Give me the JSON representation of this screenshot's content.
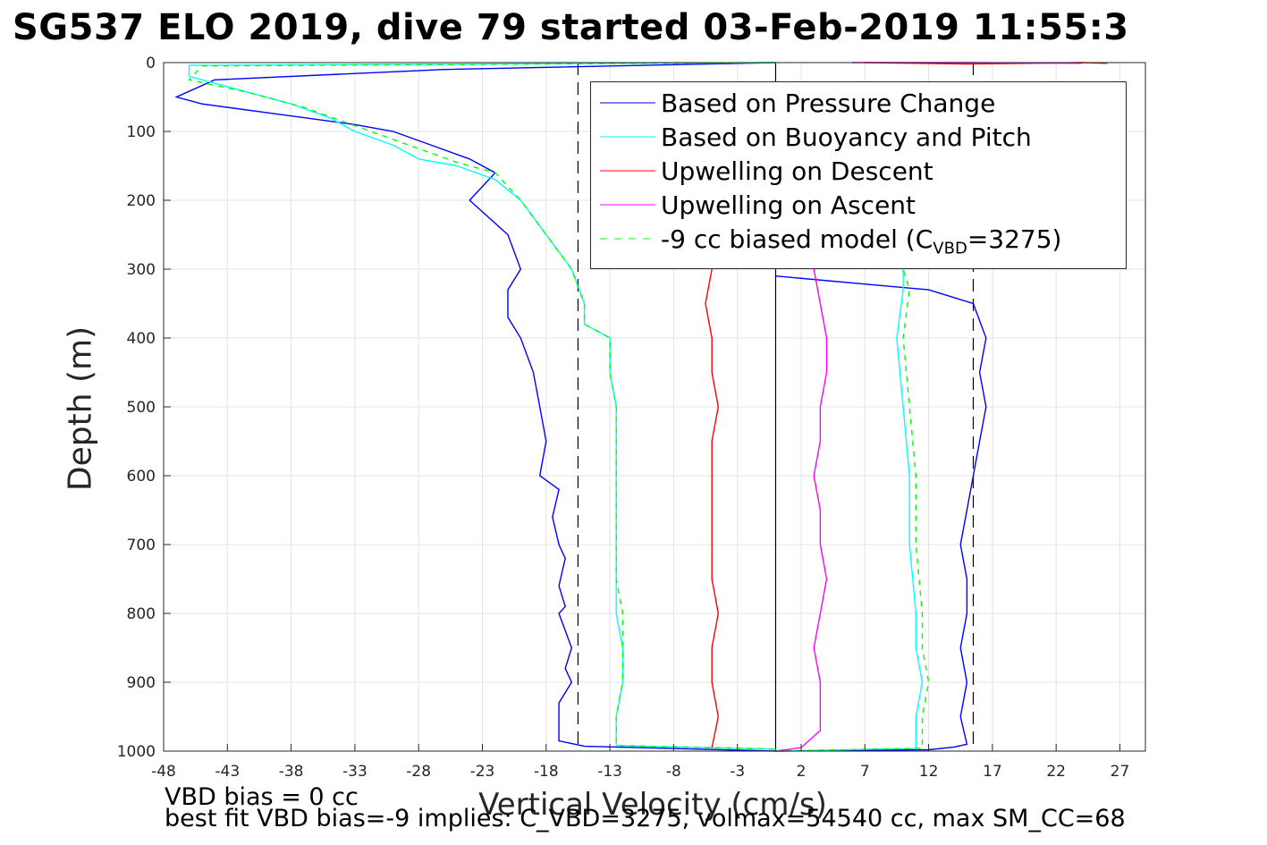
{
  "chart_data": {
    "type": "line",
    "title": "SG537 ELO 2019, dive 79 started 03-Feb-2019 11:55:3",
    "xlabel": "Vertical Velocity (cm/s)",
    "ylabel": "Depth (m)",
    "xlim": [
      -48,
      29
    ],
    "ylim": [
      0,
      1000
    ],
    "y_reversed": true,
    "grid": true,
    "legend_position": "top-right",
    "xticks": [
      -48,
      -43,
      -38,
      -33,
      -28,
      -23,
      -18,
      -13,
      -8,
      -3,
      2,
      7,
      12,
      17,
      22,
      27
    ],
    "yticks": [
      0,
      100,
      200,
      300,
      400,
      500,
      600,
      700,
      800,
      900,
      1000
    ],
    "vertical_lines": [
      {
        "x": 0,
        "style": "solid",
        "color": "#000000"
      },
      {
        "x": -15.5,
        "style": "dashed",
        "color": "#000000"
      },
      {
        "x": 15.5,
        "style": "dashed",
        "color": "#000000"
      }
    ],
    "series": [
      {
        "name": "Based on Pressure Change",
        "color": "#0000ff",
        "segments": [
          {
            "x": [
              0,
              -26,
              -44,
              -47,
              -45,
              -37,
              -33,
              -30,
              -27,
              -24,
              -22,
              -24,
              -21,
              -20,
              -21,
              -21,
              -20,
              -19,
              -18.5,
              -18,
              -18.5,
              -17,
              -17.5,
              -17,
              -16.5,
              -17,
              -16.5,
              -17,
              -16,
              -16.5,
              -16,
              -17,
              -17,
              -15,
              0
            ],
            "y": [
              0,
              10,
              25,
              50,
              60,
              80,
              90,
              100,
              120,
              140,
              160,
              200,
              250,
              300,
              330,
              370,
              400,
              450,
              500,
              550,
              600,
              620,
              660,
              700,
              720,
              760,
              790,
              800,
              850,
              880,
              900,
              930,
              985,
              993,
              1000
            ]
          },
          {
            "x": [
              0,
              12,
              14,
              15,
              14.5,
              15,
              14.5,
              15,
              15,
              14.5,
              15,
              15.5,
              16,
              16.5,
              16,
              16.5,
              15.5,
              12,
              0
            ],
            "y": [
              1000,
              998,
              994,
              990,
              950,
              900,
              850,
              800,
              750,
              700,
              650,
              600,
              550,
              500,
              450,
              400,
              350,
              330,
              310
            ]
          }
        ]
      },
      {
        "name": "Based on Buoyancy and Pitch",
        "color": "#00ffff",
        "segments": [
          {
            "x": [
              0,
              -46,
              -46,
              -42,
              -38,
              -35,
              -33,
              -30,
              -28,
              -25,
              -22,
              -20,
              -18,
              -16,
              -15,
              -15,
              -13,
              -13,
              -12.5,
              -12.5,
              -12.5,
              -12.5,
              -12.5,
              -12.5,
              -12.5,
              -12,
              -12,
              -12.5,
              -12.5,
              0
            ],
            "y": [
              0,
              4,
              20,
              40,
              60,
              80,
              100,
              120,
              140,
              150,
              170,
              200,
              250,
              300,
              350,
              380,
              400,
              450,
              500,
              550,
              600,
              650,
              700,
              750,
              800,
              850,
              900,
              950,
              992,
              997
            ]
          },
          {
            "x": [
              0,
              11,
              11,
              11.5,
              11,
              11,
              10.5,
              10.5,
              10,
              9.5,
              10,
              10
            ],
            "y": [
              1000,
              996,
              950,
              900,
              850,
              800,
              700,
              600,
              500,
              400,
              330,
              300
            ]
          }
        ]
      },
      {
        "name": "Upwelling on Descent",
        "color": "#ff0000",
        "segments": [
          {
            "x": [
              -5,
              -5.5,
              -5,
              -5,
              -4.5,
              -5,
              -5,
              -5,
              -5,
              -5,
              -4.5,
              -5,
              -5,
              -4.5,
              -5
            ],
            "y": [
              300,
              350,
              400,
              450,
              500,
              550,
              600,
              650,
              700,
              750,
              800,
              850,
              900,
              950,
              995
            ]
          },
          {
            "x": [
              7,
              11,
              15,
              20,
              24,
              26
            ],
            "y": [
              0,
              1,
              2,
              1,
              0,
              1
            ]
          }
        ]
      },
      {
        "name": "Upwelling on Ascent",
        "color": "#ff00ff",
        "segments": [
          {
            "x": [
              0,
              2,
              3.5,
              3.5,
              3.5,
              3,
              3.5,
              4,
              3.5,
              3.5,
              3,
              3.5,
              3.5,
              4,
              4,
              3
            ],
            "y": [
              1000,
              995,
              970,
              950,
              900,
              850,
              800,
              750,
              700,
              650,
              600,
              550,
              500,
              450,
              400,
              300
            ]
          },
          {
            "x": [
              6,
              15,
              24
            ],
            "y": [
              0,
              0,
              1
            ]
          }
        ]
      },
      {
        "name": "-9 cc biased model (C_VBD=3275)",
        "color": "#00ff00",
        "dashed": true,
        "segments": [
          {
            "x": [
              0,
              -45,
              -46,
              -41,
              -37,
              -34,
              -31,
              -28,
              -25,
              -22,
              -20,
              -18,
              -16,
              -15,
              -15,
              -13,
              -13,
              -12.5,
              -12.5,
              -12.5,
              -12.5,
              -12.5,
              -12.5,
              -12,
              -12,
              -12,
              -12.5,
              -12.5,
              0
            ],
            "y": [
              0,
              5,
              25,
              45,
              65,
              85,
              105,
              125,
              145,
              160,
              200,
              250,
              300,
              350,
              380,
              400,
              450,
              500,
              550,
              600,
              650,
              700,
              750,
              800,
              850,
              900,
              950,
              992,
              997
            ]
          },
          {
            "x": [
              0,
              11.5,
              11.5,
              12,
              11.5,
              11.5,
              11,
              11,
              10.5,
              10,
              10.5,
              10
            ],
            "y": [
              1000,
              996,
              950,
              900,
              850,
              800,
              700,
              600,
              500,
              400,
              330,
              300
            ]
          }
        ]
      }
    ],
    "legend": [
      {
        "label": "Based on Pressure Change"
      },
      {
        "label": "Based on Buoyancy and Pitch"
      },
      {
        "label": "Upwelling on Descent"
      },
      {
        "label": "Upwelling on Ascent"
      },
      {
        "label_pre": "-9 cc biased model (C",
        "label_sub": "VBD",
        "label_post": "=3275)"
      }
    ],
    "annotations": {
      "note1": "VBD bias = 0 cc",
      "note2": "best fit VBD bias=-9 implies: C_VBD=3275, volmax=54540 cc, max SM_CC=68"
    }
  }
}
